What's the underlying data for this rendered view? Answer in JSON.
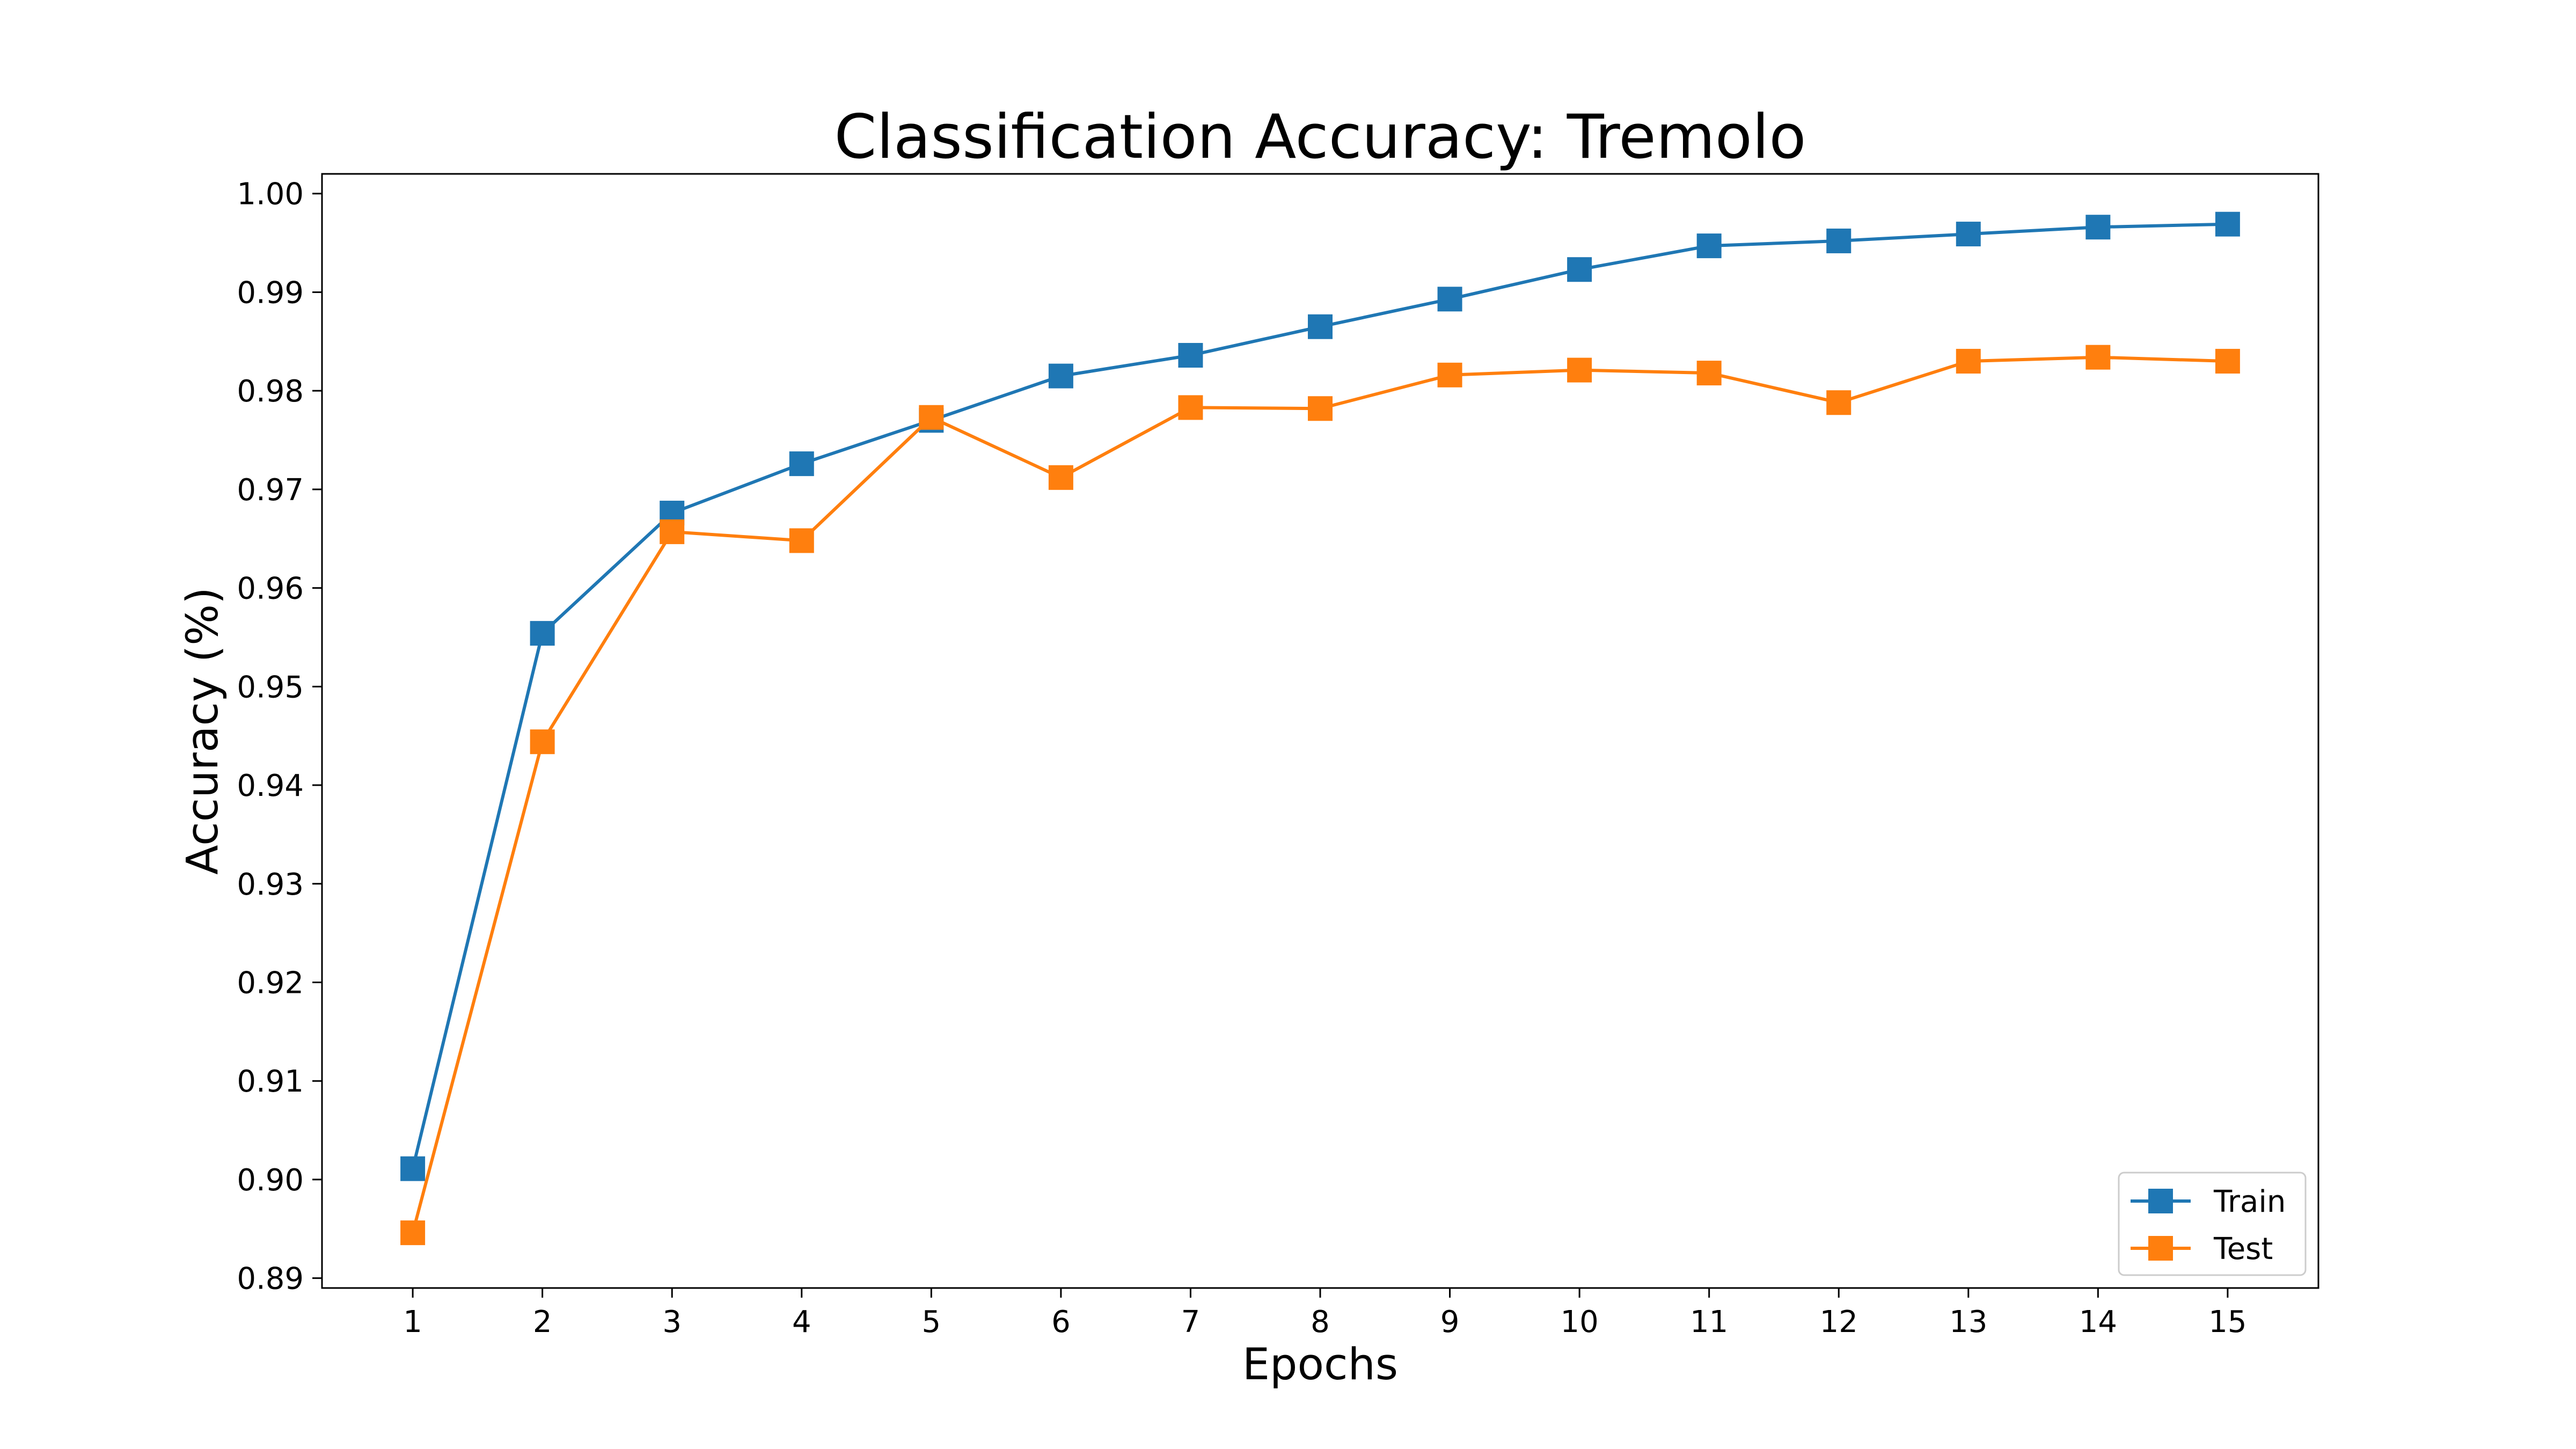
{
  "chart_data": {
    "type": "line",
    "title": "Classification Accuracy: Tremolo",
    "xlabel": "Epochs",
    "ylabel": "Accuracy (%)",
    "x": [
      1,
      2,
      3,
      4,
      5,
      6,
      7,
      8,
      9,
      10,
      11,
      12,
      13,
      14,
      15
    ],
    "xticks": [
      "1",
      "2",
      "3",
      "4",
      "5",
      "6",
      "7",
      "8",
      "9",
      "10",
      "11",
      "12",
      "13",
      "14",
      "15"
    ],
    "yticks": [
      "0.89",
      "0.90",
      "0.91",
      "0.92",
      "0.93",
      "0.94",
      "0.95",
      "0.96",
      "0.97",
      "0.98",
      "0.99",
      "1.00"
    ],
    "ytick_values": [
      0.89,
      0.9,
      0.91,
      0.92,
      0.93,
      0.94,
      0.95,
      0.96,
      0.97,
      0.98,
      0.99,
      1.0
    ],
    "xlim": [
      0.3,
      15.7
    ],
    "ylim": [
      0.889,
      1.002
    ],
    "grid": false,
    "legend_position": "lower-right",
    "series": [
      {
        "name": "Train",
        "color": "#1f77b4",
        "marker": "square",
        "values": [
          0.9011,
          0.9554,
          0.9676,
          0.9726,
          0.977,
          0.9815,
          0.9836,
          0.9865,
          0.9893,
          0.9923,
          0.9947,
          0.9952,
          0.9959,
          0.9966,
          0.9969
        ]
      },
      {
        "name": "Test",
        "color": "#ff7f0e",
        "marker": "square",
        "values": [
          0.8946,
          0.9444,
          0.9657,
          0.9648,
          0.9773,
          0.9712,
          0.9783,
          0.9782,
          0.9816,
          0.9821,
          0.9818,
          0.9788,
          0.983,
          0.9834,
          0.983
        ]
      }
    ]
  }
}
